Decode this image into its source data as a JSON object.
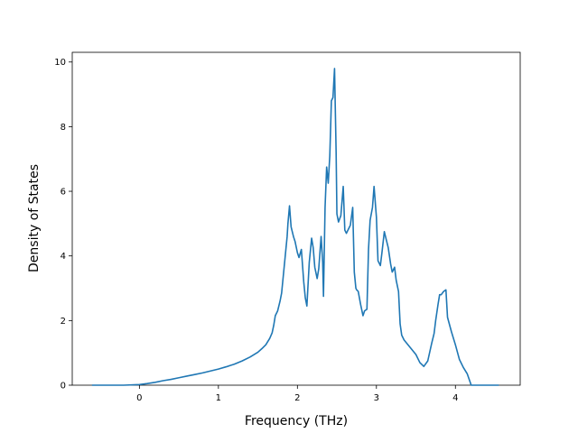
{
  "chart_data": {
    "type": "line",
    "title": "",
    "xlabel": "Frequency (THz)",
    "ylabel": "Density of States",
    "xlim": [
      -0.85,
      4.82
    ],
    "ylim": [
      0,
      10.3
    ],
    "xticks": [
      0,
      1,
      2,
      3,
      4
    ],
    "yticks": [
      0,
      2,
      4,
      6,
      8,
      10
    ],
    "grid": false,
    "legend": "none",
    "series": [
      {
        "color": "#1f77b4",
        "x": [
          -0.6,
          -0.4,
          -0.2,
          0.0,
          0.1,
          0.2,
          0.3,
          0.4,
          0.5,
          0.6,
          0.7,
          0.8,
          0.9,
          1.0,
          1.1,
          1.2,
          1.3,
          1.4,
          1.5,
          1.55,
          1.6,
          1.65,
          1.68,
          1.7,
          1.72,
          1.75,
          1.78,
          1.8,
          1.83,
          1.85,
          1.87,
          1.88,
          1.9,
          1.92,
          1.95,
          1.97,
          2.0,
          2.02,
          2.05,
          2.08,
          2.1,
          2.12,
          2.15,
          2.18,
          2.2,
          2.22,
          2.25,
          2.27,
          2.3,
          2.32,
          2.33,
          2.35,
          2.37,
          2.39,
          2.41,
          2.43,
          2.45,
          2.47,
          2.49,
          2.5,
          2.52,
          2.55,
          2.58,
          2.6,
          2.62,
          2.63,
          2.65,
          2.67,
          2.7,
          2.72,
          2.74,
          2.75,
          2.77,
          2.8,
          2.83,
          2.85,
          2.88,
          2.9,
          2.92,
          2.95,
          2.97,
          3.0,
          3.02,
          3.05,
          3.07,
          3.1,
          3.13,
          3.15,
          3.18,
          3.2,
          3.23,
          3.25,
          3.28,
          3.3,
          3.32,
          3.35,
          3.4,
          3.45,
          3.5,
          3.55,
          3.6,
          3.65,
          3.7,
          3.73,
          3.75,
          3.78,
          3.8,
          3.82,
          3.85,
          3.88,
          3.9,
          3.95,
          4.0,
          4.05,
          4.1,
          4.15,
          4.2,
          4.3,
          4.4,
          4.55
        ],
        "y": [
          0.0,
          0.0,
          0.0,
          0.02,
          0.05,
          0.09,
          0.14,
          0.18,
          0.23,
          0.28,
          0.33,
          0.38,
          0.44,
          0.5,
          0.57,
          0.65,
          0.75,
          0.87,
          1.02,
          1.13,
          1.25,
          1.45,
          1.62,
          1.85,
          2.15,
          2.3,
          2.6,
          2.85,
          3.6,
          4.1,
          4.6,
          5.0,
          5.55,
          4.9,
          4.6,
          4.45,
          4.1,
          3.95,
          4.2,
          3.2,
          2.7,
          2.45,
          3.8,
          4.55,
          4.25,
          3.65,
          3.3,
          3.6,
          4.6,
          3.8,
          2.75,
          5.5,
          6.75,
          6.25,
          7.1,
          8.8,
          8.9,
          9.8,
          7.2,
          5.3,
          5.05,
          5.25,
          6.15,
          4.8,
          4.7,
          4.75,
          4.85,
          4.95,
          5.5,
          3.5,
          3.0,
          2.95,
          2.9,
          2.5,
          2.15,
          2.3,
          2.35,
          4.2,
          5.1,
          5.5,
          6.15,
          5.2,
          3.85,
          3.7,
          4.1,
          4.75,
          4.45,
          4.25,
          3.75,
          3.5,
          3.65,
          3.25,
          2.9,
          1.9,
          1.55,
          1.4,
          1.25,
          1.1,
          0.95,
          0.7,
          0.58,
          0.75,
          1.3,
          1.6,
          2.0,
          2.5,
          2.8,
          2.8,
          2.9,
          2.95,
          2.1,
          1.65,
          1.25,
          0.8,
          0.55,
          0.35,
          0.0,
          0.0,
          0.0,
          0.0
        ]
      }
    ]
  }
}
